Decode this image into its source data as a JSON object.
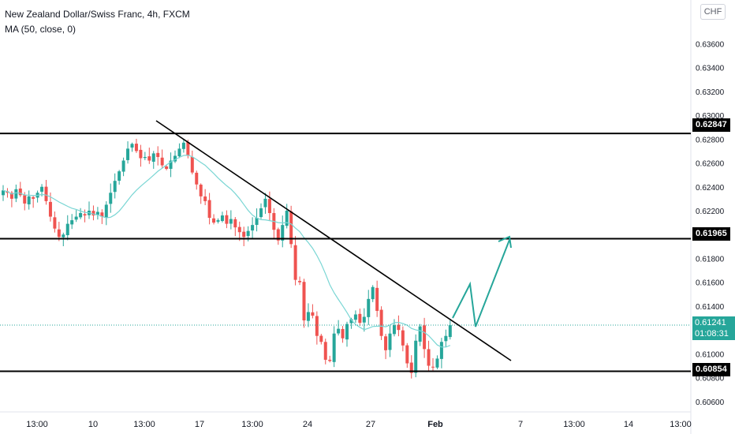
{
  "legend": {
    "symbol": "New Zealand Dollar/Swiss Franc, 4h, FXCM",
    "indicator": "MA (50, close, 0)"
  },
  "currency_button": "CHF",
  "colors": {
    "up": "#26a69a",
    "down": "#ef5350",
    "ma": "#7ad6d4",
    "arrow": "#26a69a",
    "level": "#000000"
  },
  "chart_data": {
    "type": "candlestick",
    "title": "New Zealand Dollar/Swiss Franc, 4h, FXCM",
    "ylim": [
      0.6048,
      0.639
    ],
    "y_ticks": [
      "0.63600",
      "0.63400",
      "0.63200",
      "0.63000",
      "0.62800",
      "0.62600",
      "0.62400",
      "0.62200",
      "0.62000",
      "0.61800",
      "0.61600",
      "0.61400",
      "0.61000",
      "0.60800",
      "0.60600"
    ],
    "x_ticks": [
      "13:00",
      "10",
      "13:00",
      "17",
      "13:00",
      "24",
      "27",
      "Feb",
      "7",
      "13:00",
      "14",
      "13:00"
    ],
    "price_levels": [
      {
        "label": "0.62847",
        "value": 0.62847
      },
      {
        "label": "0.61965",
        "value": 0.61965
      },
      {
        "label": "0.60854",
        "value": 0.60854
      }
    ],
    "current_price": {
      "label": "0.61241",
      "value": 0.61241,
      "countdown": "01:08:31"
    },
    "ma_label": "MA (50, close, 0)",
    "closes": [
      0.6237,
      0.6235,
      0.623,
      0.6238,
      0.6233,
      0.6226,
      0.6232,
      0.623,
      0.6235,
      0.624,
      0.6228,
      0.6215,
      0.6205,
      0.6198,
      0.62,
      0.6209,
      0.6212,
      0.6215,
      0.6218,
      0.6216,
      0.622,
      0.6216,
      0.6219,
      0.6215,
      0.6225,
      0.6235,
      0.6245,
      0.6253,
      0.6262,
      0.6272,
      0.6276,
      0.627,
      0.6264,
      0.6265,
      0.6262,
      0.6268,
      0.6265,
      0.6258,
      0.6255,
      0.6262,
      0.6266,
      0.6272,
      0.6277,
      0.6266,
      0.6252,
      0.6242,
      0.6232,
      0.6228,
      0.6214,
      0.621,
      0.6212,
      0.6216,
      0.6209,
      0.6213,
      0.6206,
      0.6202,
      0.6198,
      0.6203,
      0.6208,
      0.6214,
      0.6222,
      0.623,
      0.6218,
      0.6204,
      0.6195,
      0.6208,
      0.622,
      0.6192,
      0.6162,
      0.616,
      0.6128,
      0.6135,
      0.6132,
      0.6115,
      0.611,
      0.6095,
      0.6094,
      0.6117,
      0.6121,
      0.6113,
      0.6125,
      0.6129,
      0.6133,
      0.6126,
      0.6131,
      0.6146,
      0.6156,
      0.6136,
      0.6115,
      0.6103,
      0.6117,
      0.6124,
      0.612,
      0.6107,
      0.6092,
      0.6084,
      0.6111,
      0.6123,
      0.6104,
      0.609,
      0.6089,
      0.6096,
      0.611,
      0.6115,
      0.6124
    ]
  }
}
